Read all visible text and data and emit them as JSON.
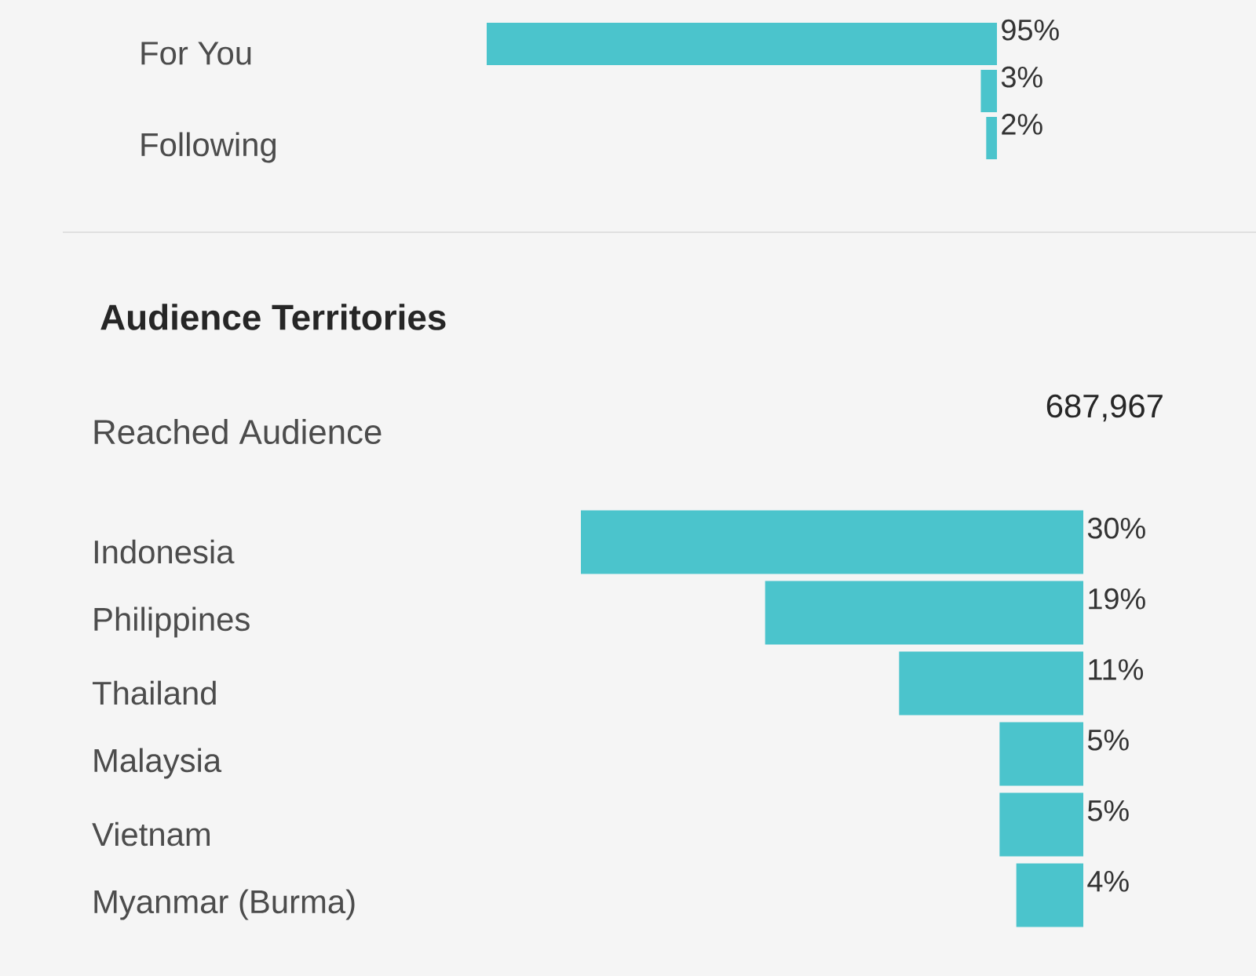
{
  "chart_data": [
    {
      "type": "bar",
      "orientation": "horizontal",
      "categories": [
        "For You",
        null,
        "Following"
      ],
      "values": [
        95,
        3,
        2
      ],
      "value_labels": [
        "95%",
        "3%",
        "2%"
      ],
      "color": "#4bc4cc"
    },
    {
      "type": "bar",
      "orientation": "horizontal",
      "title": "Audience Territories",
      "annotations": [
        "Reached Audience",
        "687,967"
      ],
      "categories": [
        "Indonesia",
        "Philippines",
        "Thailand",
        "Malaysia",
        "Vietnam",
        "Myanmar (Burma)"
      ],
      "values": [
        30,
        19,
        11,
        5,
        5,
        4
      ],
      "value_labels": [
        "30%",
        "19%",
        "11%",
        "5%",
        "5%",
        "4%"
      ],
      "color": "#4bc4cc"
    }
  ]
}
